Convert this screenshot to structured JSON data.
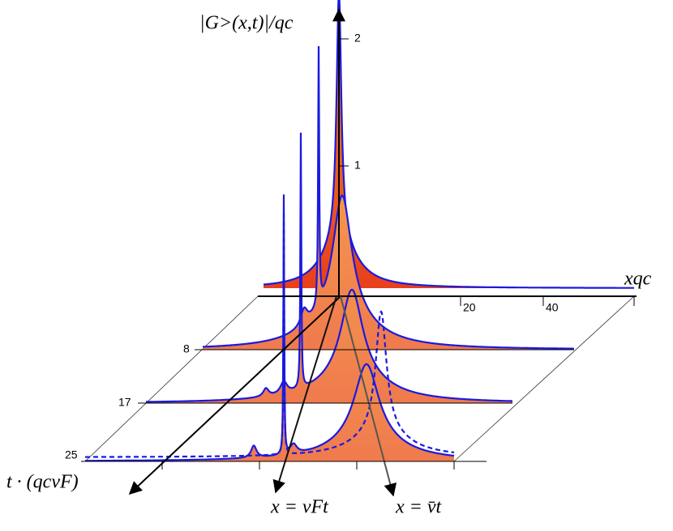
{
  "axes": {
    "y_label": "|G>(x,t)|/qc",
    "x_label": "xqc",
    "t_label": "t · (qcvF)",
    "y_ticks": [
      "1",
      "2"
    ],
    "x_ticks": [
      "20",
      "40"
    ],
    "t_ticks": [
      "8",
      "17",
      "25"
    ]
  },
  "annotations": {
    "line_vf": "x = vFt",
    "line_vbar": "x = v̄t"
  }
}
